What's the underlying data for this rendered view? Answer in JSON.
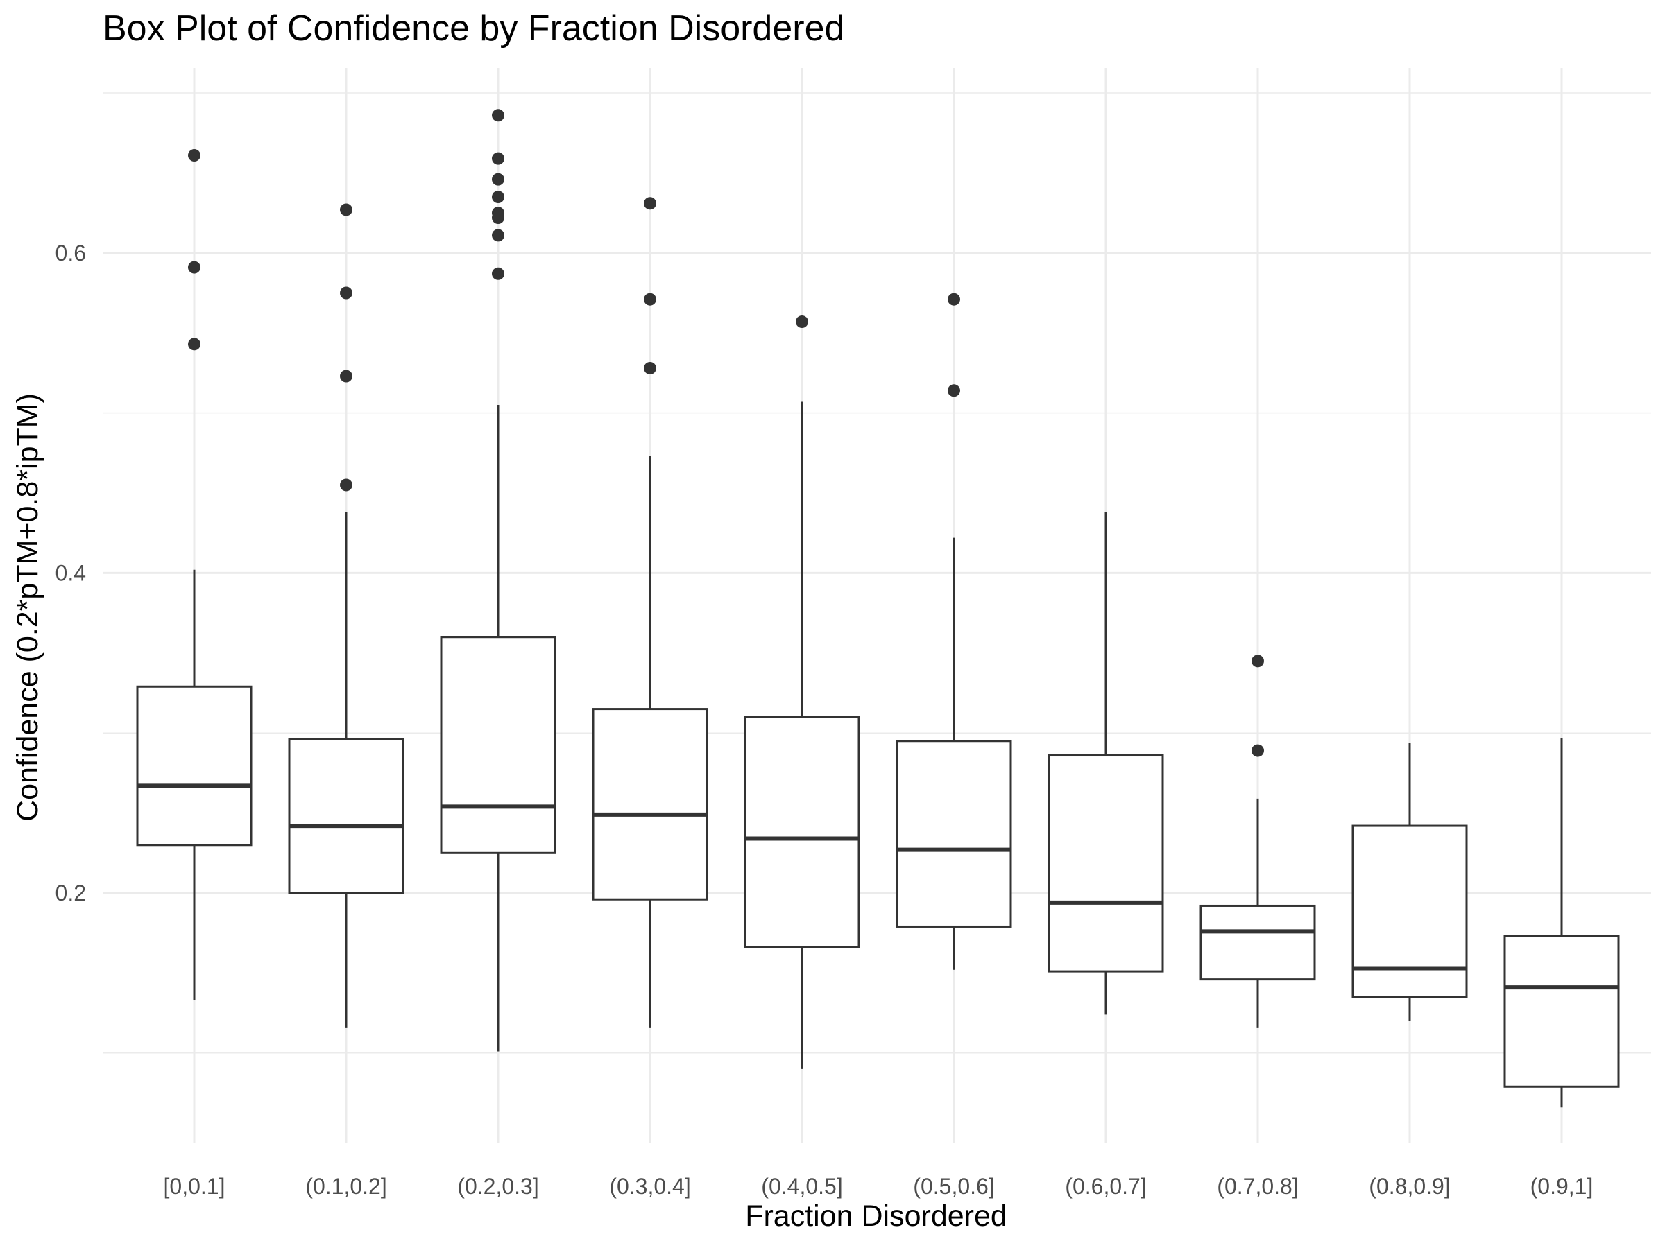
{
  "chart_data": {
    "type": "box",
    "title": "Box Plot of Confidence by Fraction Disordered",
    "xlabel": "Fraction Disordered",
    "ylabel": "Confidence (0.2*pTM+0.8*ipTM)",
    "ylim": [
      0.05,
      0.72
    ],
    "yticks": [
      0.2,
      0.4,
      0.6
    ],
    "ytick_labels": [
      "0.2",
      "0.4",
      "0.6"
    ],
    "grid": true,
    "legend": "none",
    "categories": [
      "[0,0.1]",
      "(0.1,0.2]",
      "(0.2,0.3]",
      "(0.3,0.4]",
      "(0.4,0.5]",
      "(0.5,0.6]",
      "(0.6,0.7]",
      "(0.7,0.8]",
      "(0.8,0.9]",
      "(0.9,1]"
    ],
    "boxes": [
      {
        "min": 0.133,
        "q1": 0.23,
        "median": 0.267,
        "q3": 0.329,
        "max": 0.402,
        "outliers": [
          0.543,
          0.591,
          0.661
        ]
      },
      {
        "min": 0.116,
        "q1": 0.2,
        "median": 0.242,
        "q3": 0.296,
        "max": 0.438,
        "outliers": [
          0.455,
          0.523,
          0.575,
          0.627
        ]
      },
      {
        "min": 0.101,
        "q1": 0.225,
        "median": 0.254,
        "q3": 0.36,
        "max": 0.505,
        "outliers": [
          0.587,
          0.611,
          0.622,
          0.625,
          0.635,
          0.646,
          0.659,
          0.686
        ]
      },
      {
        "min": 0.116,
        "q1": 0.196,
        "median": 0.249,
        "q3": 0.315,
        "max": 0.473,
        "outliers": [
          0.528,
          0.571,
          0.631
        ]
      },
      {
        "min": 0.09,
        "q1": 0.166,
        "median": 0.234,
        "q3": 0.31,
        "max": 0.507,
        "outliers": [
          0.557
        ]
      },
      {
        "min": 0.152,
        "q1": 0.179,
        "median": 0.227,
        "q3": 0.295,
        "max": 0.422,
        "outliers": [
          0.514,
          0.571
        ]
      },
      {
        "min": 0.124,
        "q1": 0.151,
        "median": 0.194,
        "q3": 0.286,
        "max": 0.438,
        "outliers": []
      },
      {
        "min": 0.116,
        "q1": 0.146,
        "median": 0.176,
        "q3": 0.192,
        "max": 0.259,
        "outliers": [
          0.289,
          0.345
        ]
      },
      {
        "min": 0.12,
        "q1": 0.135,
        "median": 0.153,
        "q3": 0.242,
        "max": 0.294,
        "outliers": []
      },
      {
        "min": 0.066,
        "q1": 0.079,
        "median": 0.141,
        "q3": 0.173,
        "max": 0.297,
        "outliers": []
      }
    ]
  },
  "colors": {
    "box_line": "#333333",
    "grid_line": "#ebebeb",
    "tick_text": "#4d4d4d",
    "title_text": "#000000",
    "background": "#ffffff"
  }
}
